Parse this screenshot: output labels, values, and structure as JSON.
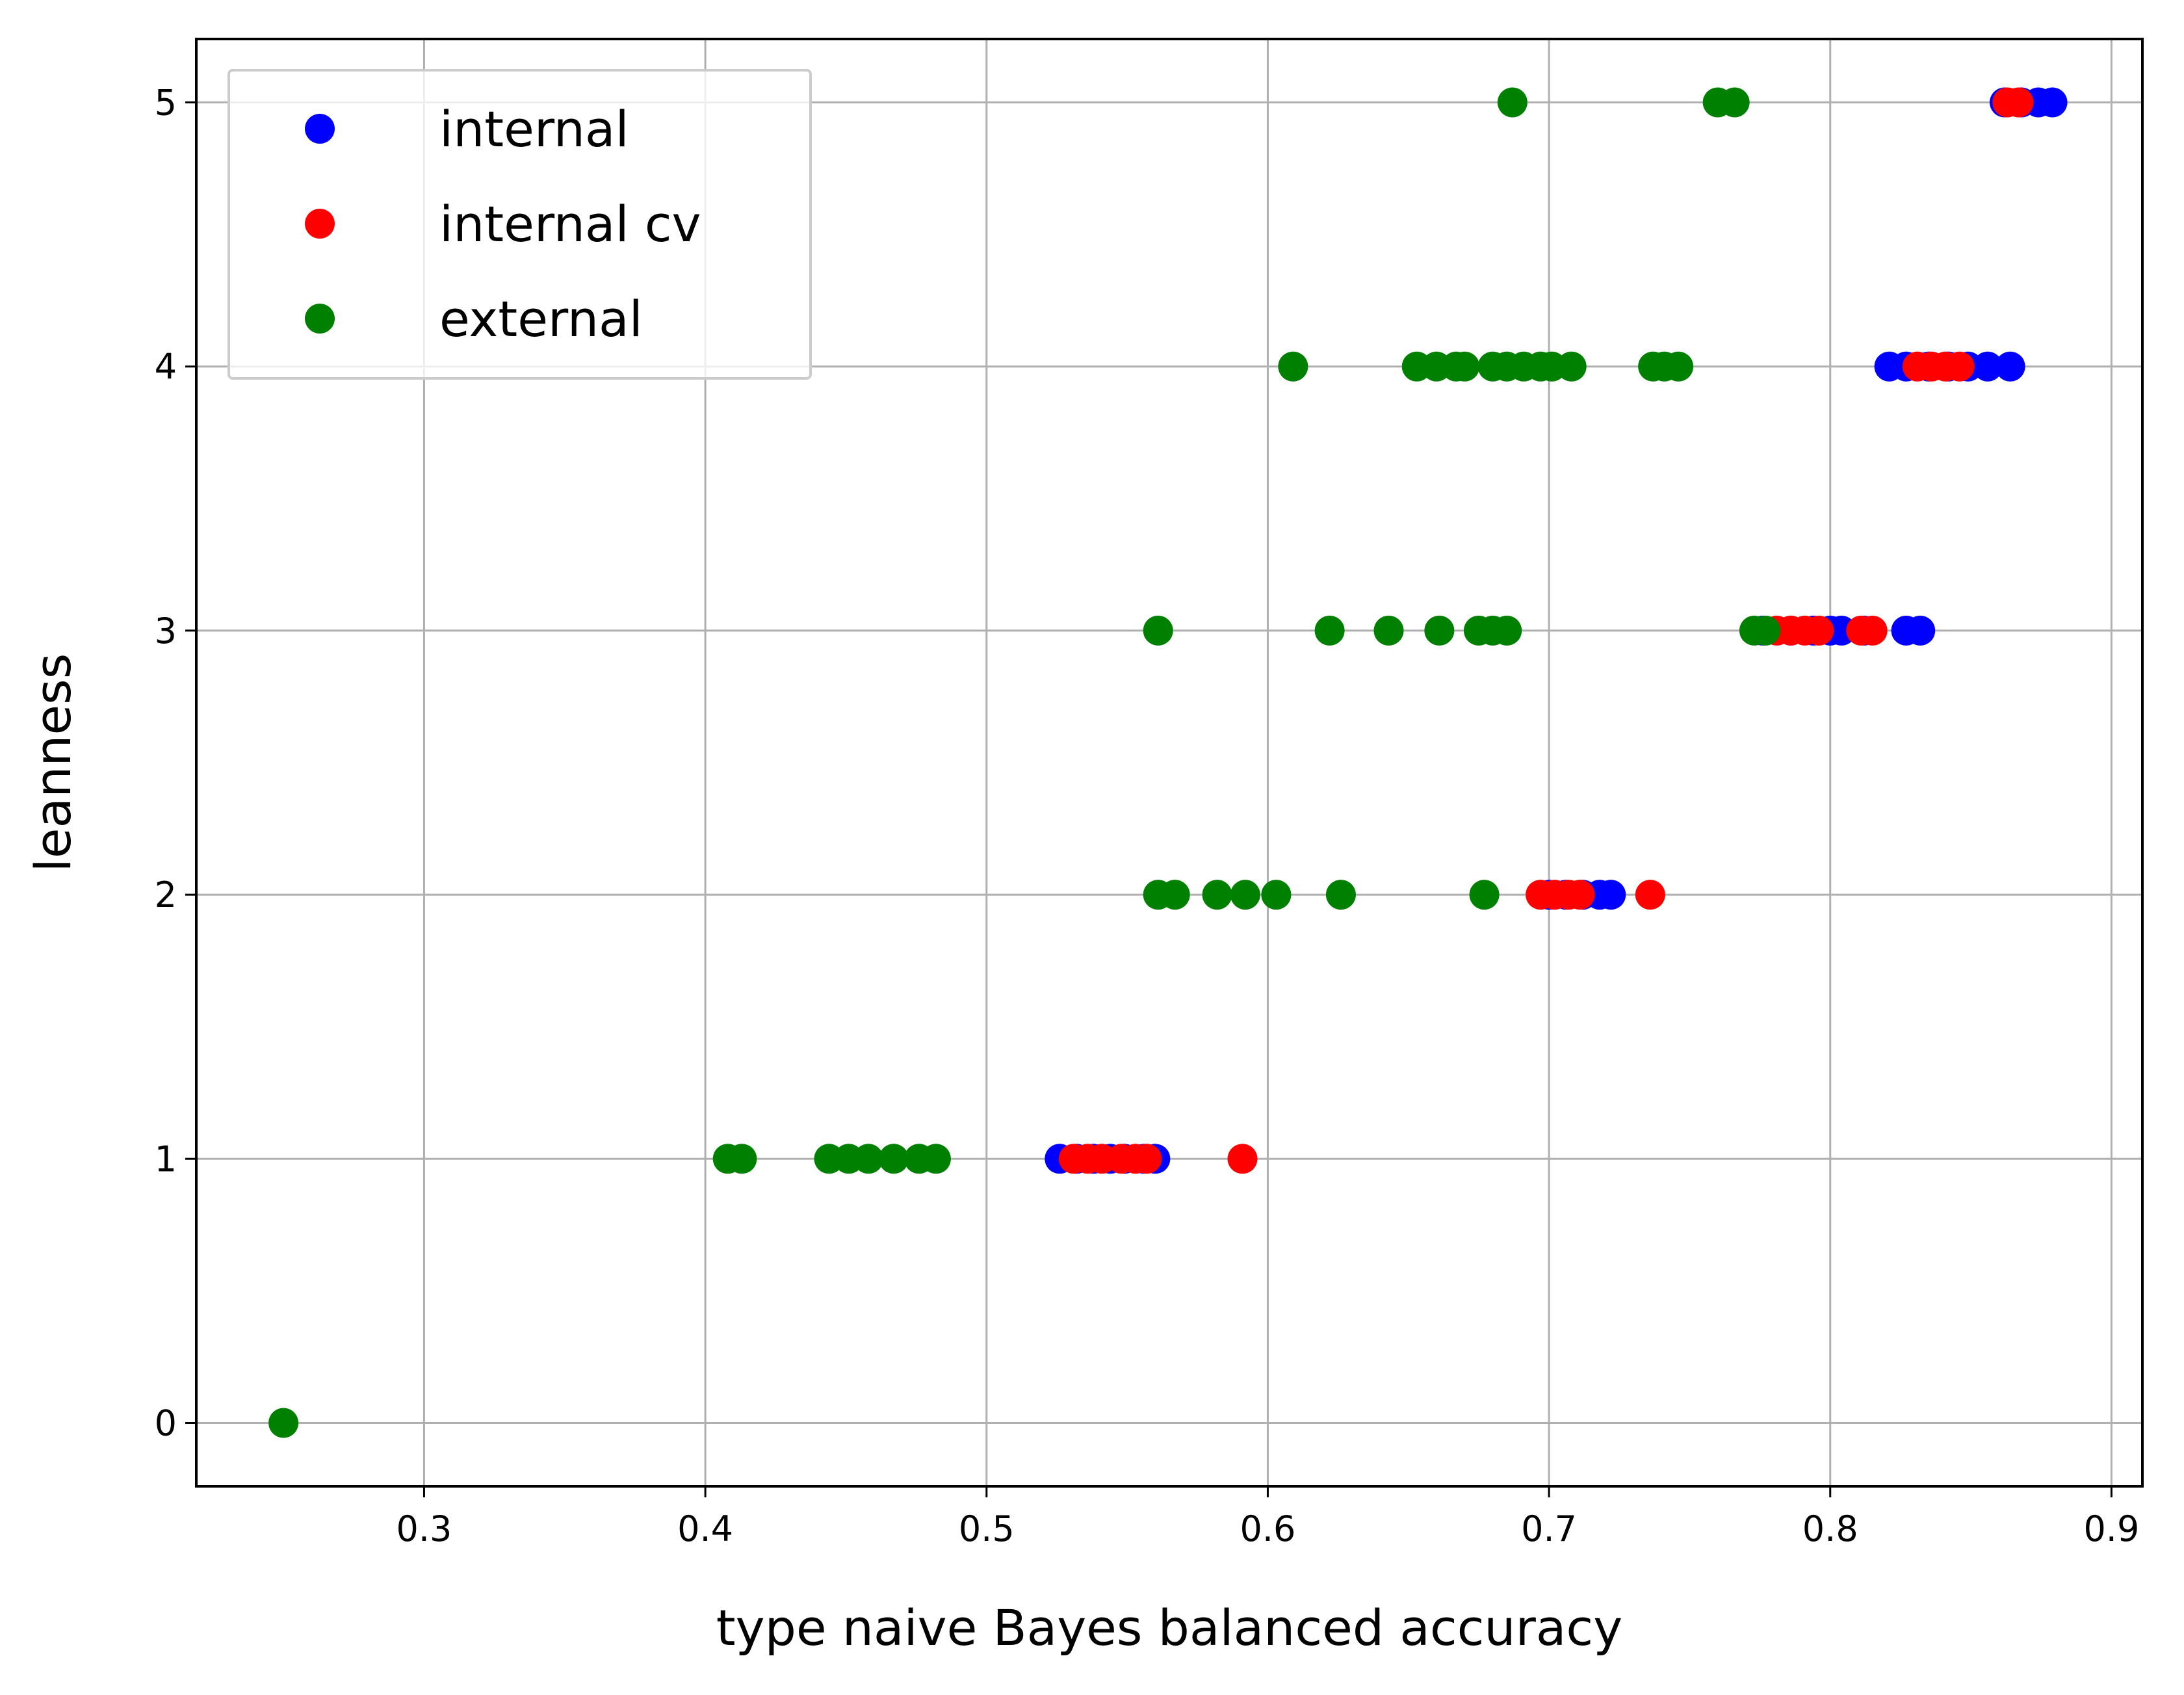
{
  "chart_data": {
    "type": "scatter",
    "title": "",
    "xlabel": "type naive Bayes balanced accuracy",
    "ylabel": "leanness",
    "xlim": [
      0.219,
      0.911
    ],
    "ylim": [
      -0.24,
      5.24
    ],
    "xticks": [
      0.3,
      0.4,
      0.5,
      0.6,
      0.7,
      0.8,
      0.9
    ],
    "xtick_labels": [
      "0.3",
      "0.4",
      "0.5",
      "0.6",
      "0.7",
      "0.8",
      "0.9"
    ],
    "yticks": [
      0,
      1,
      2,
      3,
      4,
      5
    ],
    "ytick_labels": [
      "0",
      "1",
      "2",
      "3",
      "4",
      "5"
    ],
    "grid": true,
    "legend_position": "top-left",
    "series": [
      {
        "name": "internal",
        "color": "#0000ff",
        "points": [
          [
            0.526,
            1
          ],
          [
            0.532,
            1
          ],
          [
            0.538,
            1
          ],
          [
            0.544,
            1
          ],
          [
            0.549,
            1
          ],
          [
            0.556,
            1
          ],
          [
            0.56,
            1
          ],
          [
            0.7,
            2
          ],
          [
            0.706,
            2
          ],
          [
            0.712,
            2
          ],
          [
            0.718,
            2
          ],
          [
            0.722,
            2
          ],
          [
            0.776,
            3
          ],
          [
            0.786,
            3
          ],
          [
            0.794,
            3
          ],
          [
            0.8,
            3
          ],
          [
            0.804,
            3
          ],
          [
            0.812,
            3
          ],
          [
            0.827,
            3
          ],
          [
            0.832,
            3
          ],
          [
            0.821,
            4
          ],
          [
            0.827,
            4
          ],
          [
            0.835,
            4
          ],
          [
            0.842,
            4
          ],
          [
            0.849,
            4
          ],
          [
            0.856,
            4
          ],
          [
            0.864,
            4
          ],
          [
            0.862,
            5
          ],
          [
            0.868,
            5
          ],
          [
            0.874,
            5
          ],
          [
            0.879,
            5
          ]
        ]
      },
      {
        "name": "internal cv",
        "color": "#ff0000",
        "points": [
          [
            0.531,
            1
          ],
          [
            0.536,
            1
          ],
          [
            0.541,
            1
          ],
          [
            0.548,
            1
          ],
          [
            0.553,
            1
          ],
          [
            0.557,
            1
          ],
          [
            0.591,
            1
          ],
          [
            0.697,
            2
          ],
          [
            0.702,
            2
          ],
          [
            0.707,
            2
          ],
          [
            0.711,
            2
          ],
          [
            0.736,
            2
          ],
          [
            0.781,
            3
          ],
          [
            0.786,
            3
          ],
          [
            0.791,
            3
          ],
          [
            0.796,
            3
          ],
          [
            0.811,
            3
          ],
          [
            0.815,
            3
          ],
          [
            0.831,
            4
          ],
          [
            0.836,
            4
          ],
          [
            0.841,
            4
          ],
          [
            0.846,
            4
          ],
          [
            0.863,
            5
          ],
          [
            0.867,
            5
          ]
        ]
      },
      {
        "name": "external",
        "color": "#008000",
        "points": [
          [
            0.25,
            0
          ],
          [
            0.408,
            1
          ],
          [
            0.413,
            1
          ],
          [
            0.444,
            1
          ],
          [
            0.451,
            1
          ],
          [
            0.458,
            1
          ],
          [
            0.467,
            1
          ],
          [
            0.476,
            1
          ],
          [
            0.482,
            1
          ],
          [
            0.561,
            2
          ],
          [
            0.567,
            2
          ],
          [
            0.582,
            2
          ],
          [
            0.592,
            2
          ],
          [
            0.603,
            2
          ],
          [
            0.626,
            2
          ],
          [
            0.677,
            2
          ],
          [
            0.561,
            3
          ],
          [
            0.622,
            3
          ],
          [
            0.643,
            3
          ],
          [
            0.661,
            3
          ],
          [
            0.675,
            3
          ],
          [
            0.68,
            3
          ],
          [
            0.685,
            3
          ],
          [
            0.773,
            3
          ],
          [
            0.777,
            3
          ],
          [
            0.609,
            4
          ],
          [
            0.653,
            4
          ],
          [
            0.66,
            4
          ],
          [
            0.667,
            4
          ],
          [
            0.67,
            4
          ],
          [
            0.68,
            4
          ],
          [
            0.685,
            4
          ],
          [
            0.691,
            4
          ],
          [
            0.697,
            4
          ],
          [
            0.701,
            4
          ],
          [
            0.708,
            4
          ],
          [
            0.737,
            4
          ],
          [
            0.741,
            4
          ],
          [
            0.746,
            4
          ],
          [
            0.687,
            5
          ],
          [
            0.76,
            5
          ],
          [
            0.766,
            5
          ]
        ]
      }
    ]
  }
}
